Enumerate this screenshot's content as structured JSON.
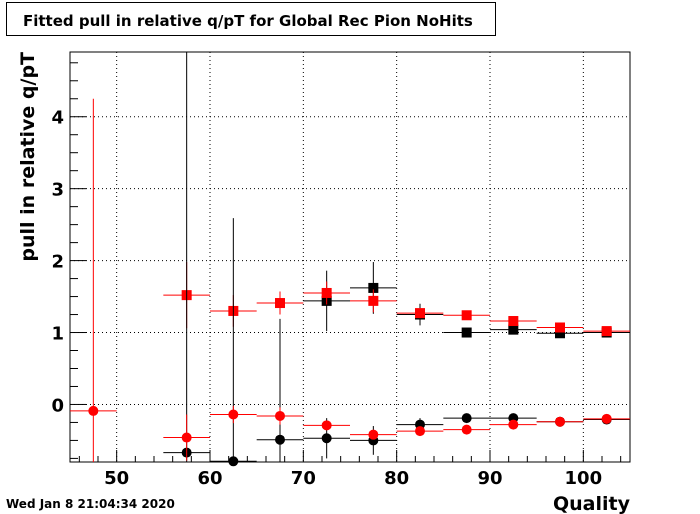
{
  "timestamp": "Wed Jan  8 21:04:34 2020",
  "chart_data": {
    "type": "scatter",
    "title": "Fitted pull in relative q/pT for Global Rec Pion NoHits",
    "xlabel": "Quality",
    "ylabel": "pull in relative q/pT",
    "xlim": [
      45,
      105
    ],
    "ylim": [
      -0.8,
      4.9
    ],
    "xticks": [
      50,
      60,
      70,
      80,
      90,
      100
    ],
    "yticks": [
      0,
      1,
      2,
      3,
      4
    ],
    "grid": true,
    "series": [
      {
        "marker": "square",
        "color": "#000000",
        "x": [
          72.5,
          77.5,
          82.5,
          87.5,
          92.5,
          97.5,
          102.5
        ],
        "y": [
          1.44,
          1.62,
          1.25,
          1.0,
          1.04,
          0.99,
          1.0
        ],
        "err": [
          0.42,
          0.36,
          0.15,
          0.05,
          0.04,
          0.03,
          0.03
        ]
      },
      {
        "marker": "square",
        "color": "#ff0000",
        "x": [
          57.5,
          62.5,
          67.5,
          72.5,
          77.5,
          82.5,
          87.5,
          92.5,
          97.5,
          102.5
        ],
        "y": [
          1.52,
          1.3,
          1.41,
          1.55,
          1.44,
          1.27,
          1.24,
          1.16,
          1.07,
          1.02
        ],
        "err": [
          0.46,
          0.22,
          0.16,
          0.16,
          0.16,
          0.07,
          0.05,
          0.04,
          0.03,
          0.02
        ]
      },
      {
        "marker": "circle",
        "color": "#000000",
        "x": [
          57.5,
          62.5,
          67.5,
          72.5,
          77.5,
          82.5,
          87.5,
          92.5,
          97.5,
          102.5
        ],
        "y": [
          -0.67,
          -0.79,
          -0.49,
          -0.47,
          -0.5,
          -0.28,
          -0.19,
          -0.19,
          -0.24,
          -0.21
        ],
        "err": [
          5.6,
          3.38,
          1.68,
          0.28,
          0.2,
          0.09,
          0.06,
          0.05,
          0.04,
          0.03
        ]
      },
      {
        "marker": "circle",
        "color": "#ff0000",
        "x": [
          47.5,
          57.5,
          62.5,
          67.5,
          72.5,
          77.5,
          82.5,
          87.5,
          92.5,
          97.5,
          102.5
        ],
        "y": [
          -0.09,
          -0.46,
          -0.14,
          -0.16,
          -0.29,
          -0.42,
          -0.37,
          -0.35,
          -0.28,
          -0.24,
          -0.2
        ],
        "err": [
          4.34,
          0.32,
          0.12,
          0.12,
          0.06,
          0.05,
          0.04,
          0.03,
          0.03,
          0.02,
          0.02
        ]
      }
    ]
  }
}
